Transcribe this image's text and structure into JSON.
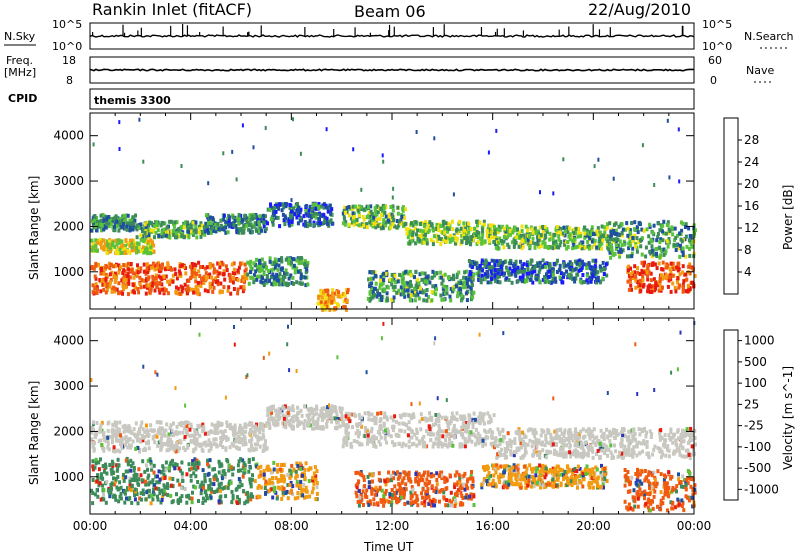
{
  "header": {
    "station": "Rankin Inlet (fitACF)",
    "beam": "Beam 06",
    "date": "22/Aug/2010"
  },
  "noise_panel": {
    "left_label": "N.Sky",
    "left_ticks": [
      "10^5",
      "10^0"
    ],
    "right_ticks": [
      "10^5",
      "10^0"
    ],
    "right_label": "N.Search"
  },
  "freq_panel": {
    "left_label": "Freq.",
    "left_unit": "[MHz]",
    "left_ticks": [
      "18",
      "8"
    ],
    "right_ticks": [
      "60",
      "0"
    ],
    "right_label": "Nave"
  },
  "cpid_panel": {
    "label": "CPID",
    "value": "themis 3300"
  },
  "colors": {
    "power": [
      "#1a1aff",
      "#1f4fa0",
      "#3c8c5a",
      "#58c23a",
      "#f2e010",
      "#f29a10",
      "#f05a10",
      "#e81a10"
    ],
    "velocity": [
      "#e81a10",
      "#f05a10",
      "#f29a10",
      "#c8c8c0",
      "#58c23a",
      "#3c8c5a",
      "#1f4fa0",
      "#2a36b8"
    ],
    "ground_scatter": "#c8c8c0"
  },
  "chart_data": [
    {
      "type": "heatmap",
      "name": "power",
      "ylabel": "Slant Range [km]",
      "ylim": [
        180,
        4500
      ],
      "yticks": [
        "1000",
        "2000",
        "3000",
        "4000"
      ],
      "xlim": [
        0,
        24
      ],
      "colorbar": {
        "label": "Power [dB]",
        "ticks": [
          "4",
          "8",
          "12",
          "16",
          "20",
          "24",
          "28"
        ],
        "range": [
          0,
          32
        ]
      },
      "bands": [
        {
          "x0": 0,
          "x1": 1.8,
          "r0": 1950,
          "r1": 2300,
          "value": 10
        },
        {
          "x0": 1.8,
          "x1": 4.5,
          "r0": 1800,
          "r1": 2150,
          "value": 12
        },
        {
          "x0": 4.5,
          "x1": 7,
          "r0": 1900,
          "r1": 2300,
          "value": 9
        },
        {
          "x0": 7,
          "x1": 9.6,
          "r0": 2050,
          "r1": 2550,
          "value": 7
        },
        {
          "x0": 10,
          "x1": 12.5,
          "r0": 2000,
          "r1": 2500,
          "value": 13
        },
        {
          "x0": 12.5,
          "x1": 16,
          "r0": 1650,
          "r1": 2150,
          "value": 14
        },
        {
          "x0": 16,
          "x1": 20.5,
          "r0": 1550,
          "r1": 2050,
          "value": 13
        },
        {
          "x0": 20.5,
          "x1": 24,
          "r0": 1350,
          "r1": 2150,
          "value": 11
        },
        {
          "x0": 0,
          "x1": 2.5,
          "r0": 1450,
          "r1": 1750,
          "value": 18
        },
        {
          "x0": 0,
          "x1": 6.2,
          "r0": 550,
          "r1": 1250,
          "value": 26
        },
        {
          "x0": 6.2,
          "x1": 8.6,
          "r0": 750,
          "r1": 1350,
          "value": 10
        },
        {
          "x0": 11,
          "x1": 15.2,
          "r0": 400,
          "r1": 1050,
          "value": 11
        },
        {
          "x0": 15,
          "x1": 20.5,
          "r0": 800,
          "r1": 1300,
          "value": 7
        },
        {
          "x0": 21.3,
          "x1": 24,
          "r0": 600,
          "r1": 1250,
          "value": 26
        },
        {
          "x0": 9,
          "x1": 10.2,
          "r0": 200,
          "r1": 650,
          "value": 22
        }
      ]
    },
    {
      "type": "heatmap",
      "name": "velocity",
      "ylabel": "Slant Range [km]",
      "ylim": [
        180,
        4500
      ],
      "yticks": [
        "1000",
        "2000",
        "3000",
        "4000"
      ],
      "xlim": [
        0,
        24
      ],
      "xticks": [
        "00:00",
        "04:00",
        "08:00",
        "12:00",
        "16:00",
        "20:00",
        "00:00"
      ],
      "xlabel": "Time UT",
      "colorbar": {
        "label": "Velocity [m s^-1]",
        "ticks": [
          "1000",
          "500",
          "100",
          "25",
          "-25",
          "-100",
          "-500",
          "-1000"
        ]
      },
      "bands": [
        {
          "x0": 0,
          "x1": 7,
          "r0": 1600,
          "r1": 2250,
          "value": "gs"
        },
        {
          "x0": 7,
          "x1": 10,
          "r0": 2100,
          "r1": 2600,
          "value": "gs"
        },
        {
          "x0": 10,
          "x1": 16,
          "r0": 1700,
          "r1": 2450,
          "value": "gs"
        },
        {
          "x0": 16,
          "x1": 24,
          "r0": 1450,
          "r1": 2100,
          "value": "gs"
        },
        {
          "x0": 0,
          "x1": 6.5,
          "r0": 450,
          "r1": 1450,
          "value": 100
        },
        {
          "x0": 6.5,
          "x1": 9,
          "r0": 550,
          "r1": 1350,
          "value": -100
        },
        {
          "x0": 10.5,
          "x1": 15.2,
          "r0": 400,
          "r1": 1150,
          "value": -500
        },
        {
          "x0": 15.5,
          "x1": 20.5,
          "r0": 800,
          "r1": 1300,
          "value": -100
        },
        {
          "x0": 21.2,
          "x1": 24,
          "r0": 300,
          "r1": 1200,
          "value": -500
        }
      ]
    }
  ]
}
